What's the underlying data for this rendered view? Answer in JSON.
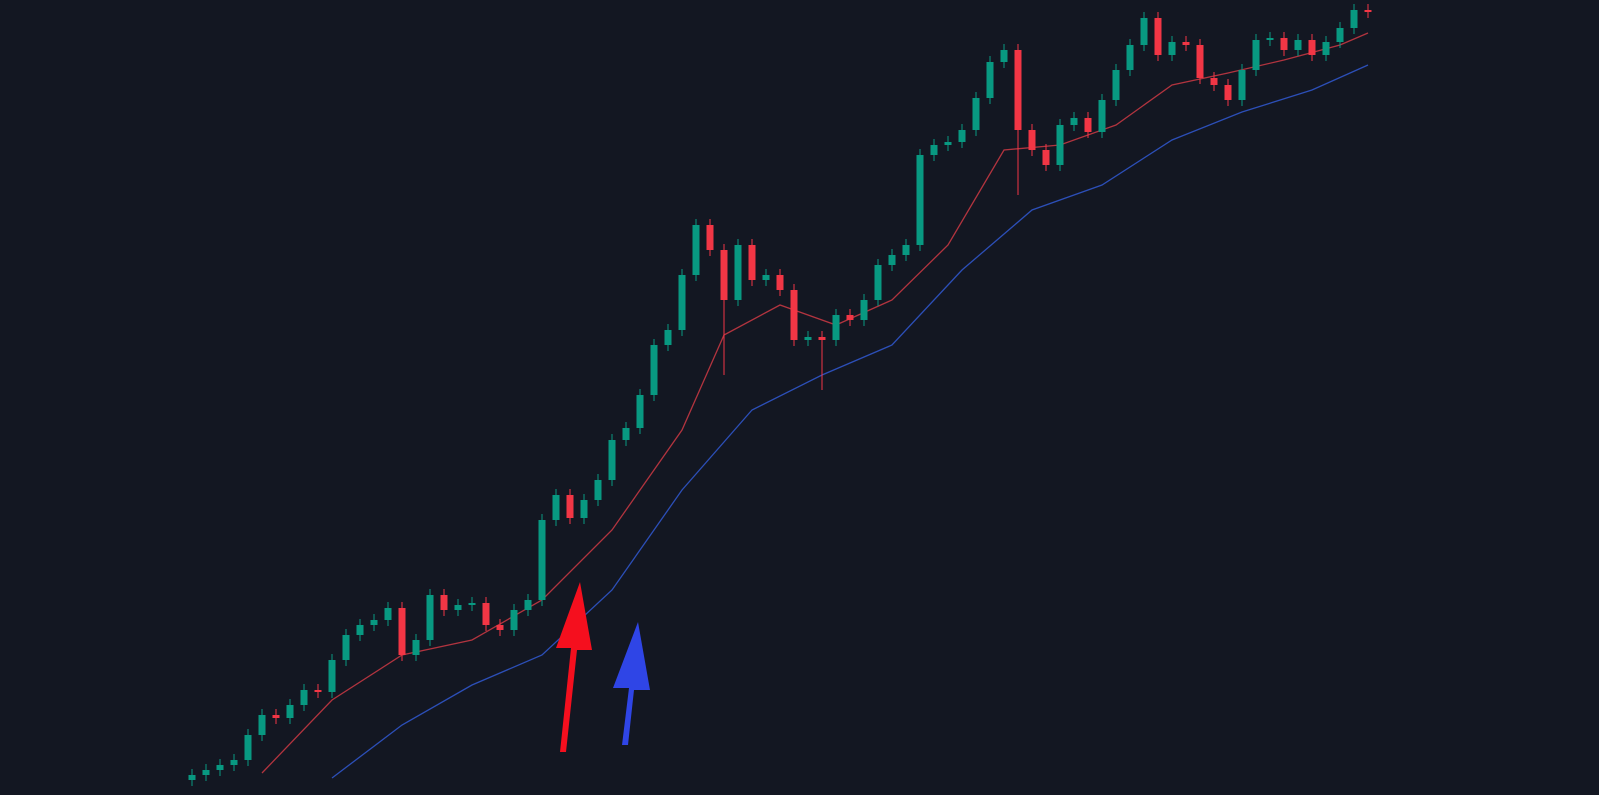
{
  "chart_data": {
    "type": "candlestick",
    "ylim": [
      0,
      795
    ],
    "up_color": "#089981",
    "down_color": "#f23645",
    "open": [
      15,
      20,
      25,
      30,
      35,
      60,
      80,
      77,
      90,
      105,
      103,
      135,
      160,
      170,
      175,
      187,
      140,
      155,
      200,
      185,
      190,
      192,
      170,
      165,
      185,
      195,
      275,
      300,
      277,
      295,
      315,
      355,
      367,
      400,
      450,
      465,
      520,
      570,
      545,
      495,
      550,
      515,
      520,
      505,
      455,
      458,
      455,
      480,
      475,
      495,
      530,
      540,
      550,
      640,
      650,
      653,
      665,
      697,
      733,
      745,
      665,
      645,
      630,
      670,
      677,
      663,
      695,
      725,
      750,
      777,
      740,
      753,
      750,
      717,
      710,
      695,
      725,
      755,
      757,
      745,
      755,
      740,
      753,
      767,
      785
    ],
    "high": [
      26,
      31,
      36,
      41,
      66,
      86,
      86,
      96,
      111,
      111,
      141,
      166,
      176,
      181,
      193,
      193,
      161,
      206,
      206,
      196,
      198,
      198,
      176,
      191,
      201,
      281,
      306,
      306,
      301,
      321,
      361,
      373,
      406,
      456,
      471,
      526,
      576,
      576,
      551,
      556,
      556,
      526,
      526,
      511,
      464,
      464,
      486,
      486,
      501,
      536,
      546,
      556,
      646,
      656,
      659,
      671,
      703,
      739,
      751,
      751,
      671,
      651,
      676,
      683,
      683,
      701,
      731,
      756,
      783,
      783,
      759,
      759,
      756,
      723,
      716,
      731,
      761,
      763,
      763,
      761,
      761,
      759,
      773,
      791,
      791
    ],
    "low": [
      9,
      14,
      19,
      24,
      29,
      54,
      71,
      71,
      84,
      97,
      97,
      129,
      154,
      164,
      169,
      134,
      134,
      149,
      179,
      179,
      184,
      164,
      159,
      159,
      179,
      189,
      269,
      271,
      271,
      289,
      309,
      349,
      361,
      394,
      444,
      459,
      514,
      539,
      420,
      489,
      509,
      509,
      499,
      449,
      449,
      405,
      449,
      469,
      469,
      489,
      524,
      534,
      544,
      634,
      644,
      647,
      659,
      691,
      727,
      600,
      639,
      624,
      624,
      664,
      657,
      657,
      689,
      719,
      744,
      734,
      734,
      744,
      711,
      704,
      689,
      689,
      719,
      749,
      739,
      739,
      734,
      734,
      747,
      761,
      777
    ],
    "close": [
      20,
      25,
      30,
      35,
      60,
      80,
      77,
      90,
      105,
      103,
      135,
      160,
      170,
      175,
      187,
      140,
      155,
      200,
      185,
      190,
      192,
      170,
      165,
      185,
      195,
      275,
      300,
      277,
      295,
      315,
      355,
      367,
      400,
      450,
      465,
      520,
      570,
      545,
      495,
      550,
      515,
      520,
      505,
      455,
      458,
      455,
      480,
      475,
      495,
      530,
      540,
      550,
      640,
      650,
      653,
      665,
      697,
      733,
      745,
      665,
      645,
      630,
      670,
      677,
      663,
      695,
      725,
      750,
      777,
      740,
      753,
      750,
      717,
      710,
      695,
      725,
      755,
      757,
      745,
      755,
      740,
      753,
      767,
      785,
      783
    ],
    "lines": [
      {
        "color": "#b2343f",
        "x": [
          5,
          10,
          15,
          20,
          25,
          30,
          35,
          38,
          42,
          46,
          50,
          54,
          58,
          62,
          66,
          70,
          74,
          78,
          82,
          84
        ],
        "values": [
          22,
          95,
          140,
          155,
          195,
          265,
          365,
          460,
          490,
          470,
          495,
          550,
          645,
          650,
          670,
          710,
          722,
          735,
          750,
          762
        ]
      },
      {
        "color": "#2c4fb8",
        "x": [
          10,
          15,
          20,
          25,
          30,
          35,
          40,
          45,
          50,
          55,
          60,
          65,
          70,
          75,
          80,
          84
        ],
        "values": [
          17,
          70,
          110,
          140,
          205,
          305,
          385,
          420,
          450,
          525,
          585,
          610,
          655,
          683,
          705,
          730
        ]
      }
    ]
  }
}
